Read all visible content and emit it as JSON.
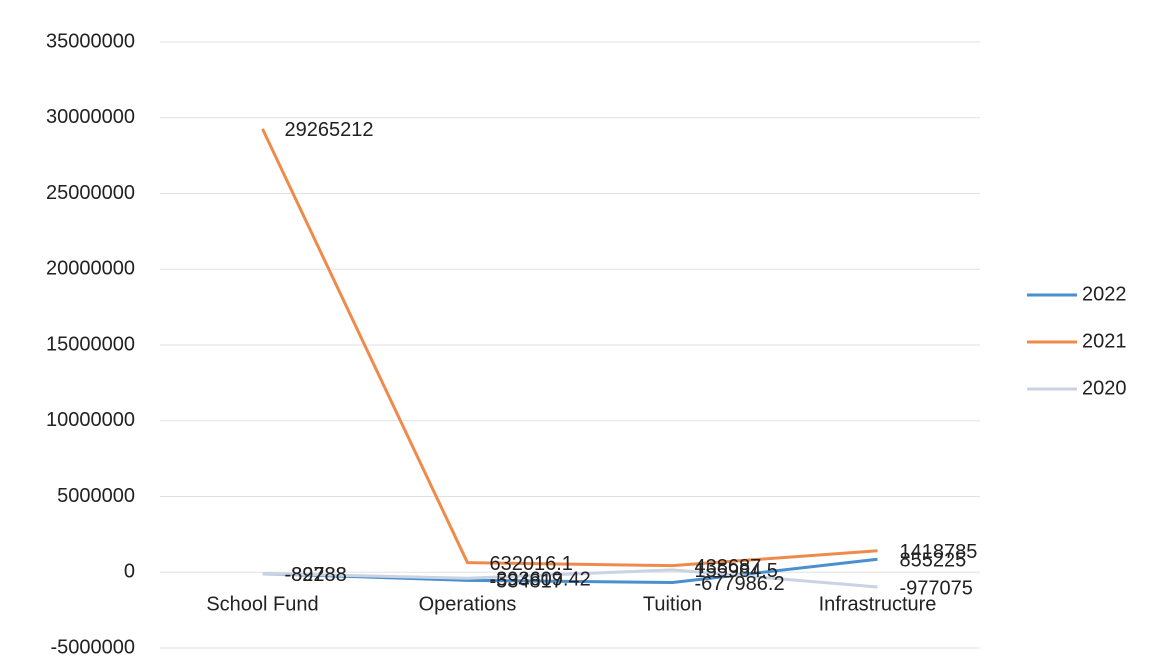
{
  "chart_data": {
    "type": "line",
    "categories": [
      "School Fund",
      "Operations",
      "Tuition",
      "Infrastructure"
    ],
    "series": [
      {
        "name": "2022",
        "color": "#4a8fd0",
        "values": [
          -89788,
          -534817,
          -677986.2,
          855225
        ]
      },
      {
        "name": "2021",
        "color": "#f08a4b",
        "values": [
          29265212,
          632016.1,
          438687,
          1418785
        ]
      },
      {
        "name": "2020",
        "color": "#c9d3e2",
        "values": [
          -82288,
          -393609.42,
          155984.5,
          -977075
        ]
      }
    ],
    "ylim": [
      -5000000,
      35000000
    ],
    "yticks": [
      -5000000,
      0,
      5000000,
      10000000,
      15000000,
      20000000,
      25000000,
      30000000,
      35000000
    ],
    "grid": true,
    "legend": "right"
  }
}
